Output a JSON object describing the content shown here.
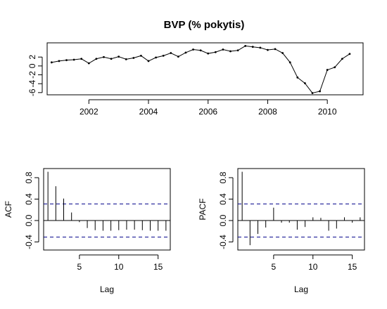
{
  "chart_data": [
    {
      "type": "line",
      "title": "BVP (% pokytis)",
      "xlabel": "",
      "ylabel": "",
      "xlim": [
        2000.6,
        2011.2
      ],
      "ylim": [
        -6.5,
        5.2
      ],
      "xticks": [
        2002,
        2004,
        2006,
        2008,
        2010
      ],
      "xtick_labels": [
        "2002",
        "2004",
        "2006",
        "2008",
        "2010"
      ],
      "yticks": [
        -6,
        -4,
        -2,
        0,
        2
      ],
      "ytick_labels": [
        "-6",
        "-4",
        "-2",
        "0",
        "2"
      ],
      "grid": false,
      "series": [
        {
          "x": [
            2000.75,
            2001.0,
            2001.25,
            2001.5,
            2001.75,
            2002.0,
            2002.25,
            2002.5,
            2002.75,
            2003.0,
            2003.25,
            2003.5,
            2003.75,
            2004.0,
            2004.25,
            2004.5,
            2004.75,
            2005.0,
            2005.25,
            2005.5,
            2005.75,
            2006.0,
            2006.25,
            2006.5,
            2006.75,
            2007.0,
            2007.25,
            2007.5,
            2007.75,
            2008.0,
            2008.25,
            2008.5,
            2008.75,
            2009.0,
            2009.25,
            2009.5,
            2009.75,
            2010.0,
            2010.25,
            2010.5,
            2010.75
          ],
          "values": [
            0.8,
            1.1,
            1.3,
            1.4,
            1.6,
            0.6,
            1.6,
            2.0,
            1.6,
            2.1,
            1.5,
            1.8,
            2.3,
            1.1,
            1.9,
            2.3,
            2.9,
            2.1,
            3.0,
            3.7,
            3.5,
            2.8,
            3.1,
            3.7,
            3.3,
            3.5,
            4.5,
            4.3,
            4.1,
            3.6,
            3.8,
            2.9,
            0.8,
            -2.6,
            -3.9,
            -6.1,
            -5.7,
            -0.9,
            -0.3,
            1.6,
            2.7
          ]
        }
      ]
    },
    {
      "type": "bar",
      "xlabel": "Lag",
      "ylabel": "ACF",
      "xlim": [
        0.45,
        16.55
      ],
      "ylim": [
        -0.55,
        0.97
      ],
      "xticks": [
        5,
        10,
        15
      ],
      "xtick_labels": [
        "5",
        "10",
        "15"
      ],
      "yticks": [
        -0.4,
        0.0,
        0.4,
        0.8
      ],
      "ytick_labels": [
        "-0.4",
        "0.0",
        "0.4",
        "0.8"
      ],
      "ci": [
        0.31,
        -0.31
      ],
      "lags": [
        1,
        2,
        3,
        4,
        5,
        6,
        7,
        8,
        9,
        10,
        11,
        12,
        13,
        14,
        15,
        16
      ],
      "values": [
        0.91,
        0.64,
        0.41,
        0.15,
        -0.03,
        -0.14,
        -0.18,
        -0.19,
        -0.19,
        -0.18,
        -0.17,
        -0.17,
        -0.18,
        -0.19,
        -0.19,
        -0.19
      ]
    },
    {
      "type": "bar",
      "xlabel": "Lag",
      "ylabel": "PACF",
      "xlim": [
        0.45,
        16.55
      ],
      "ylim": [
        -0.55,
        0.97
      ],
      "xticks": [
        5,
        10,
        15
      ],
      "xtick_labels": [
        "5",
        "10",
        "15"
      ],
      "yticks": [
        -0.4,
        0.0,
        0.4,
        0.8
      ],
      "ytick_labels": [
        "-0.4",
        "0.0",
        "0.4",
        "0.8"
      ],
      "ci": [
        0.31,
        -0.31
      ],
      "lags": [
        1,
        2,
        3,
        4,
        5,
        6,
        7,
        8,
        9,
        10,
        11,
        12,
        13,
        14,
        15,
        16
      ],
      "values": [
        0.91,
        -0.46,
        -0.25,
        -0.13,
        0.24,
        -0.04,
        -0.04,
        -0.17,
        -0.12,
        0.06,
        0.05,
        -0.19,
        -0.15,
        0.06,
        -0.04,
        0.06
      ]
    }
  ]
}
